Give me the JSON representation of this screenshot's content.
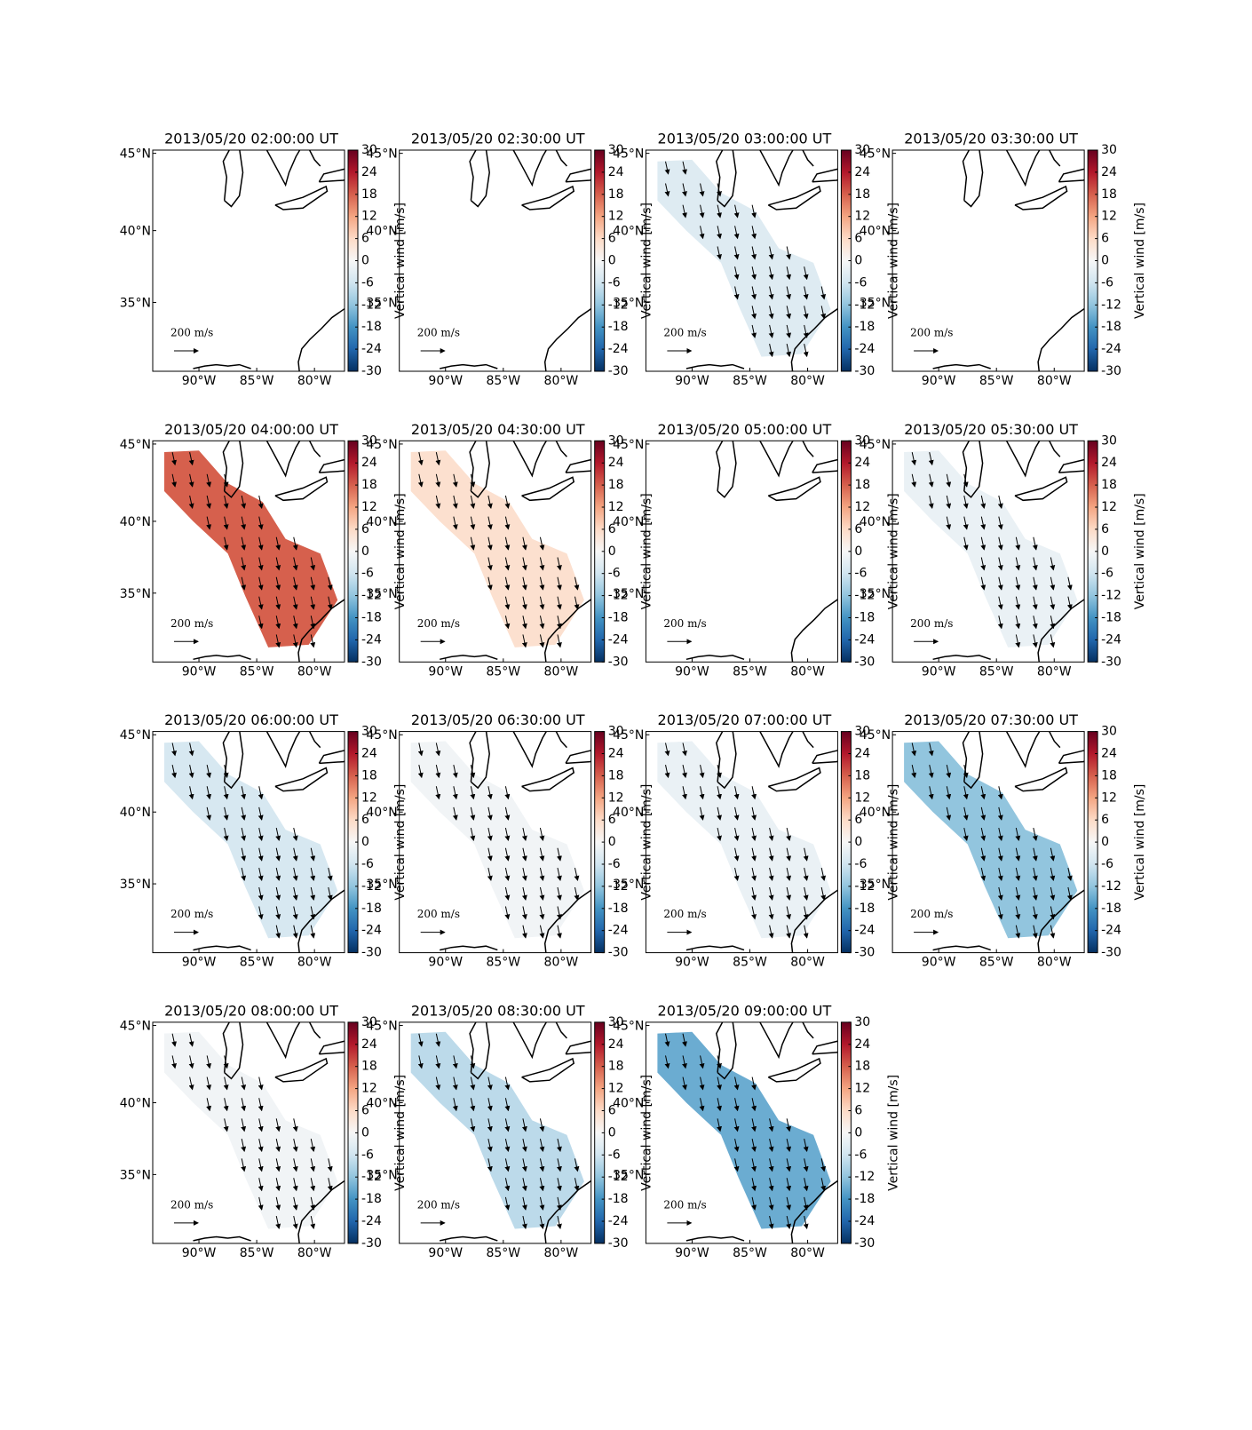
{
  "shared": {
    "xlim": [
      -94,
      -77.4
    ],
    "ylim": [
      29.9,
      45.2
    ],
    "xticks": [
      {
        "value": -90,
        "label": "90°W"
      },
      {
        "value": -85,
        "label": "85°W"
      },
      {
        "value": -80,
        "label": "80°W"
      }
    ],
    "yticks": [
      {
        "value": 45,
        "label": "45°N"
      },
      {
        "value": 40,
        "label": "40°N"
      },
      {
        "value": 35,
        "label": "35°N"
      }
    ],
    "cbar_lim": [
      -30,
      30
    ],
    "cbar_ticks": [
      30,
      24,
      18,
      12,
      6,
      0,
      -6,
      -12,
      -18,
      -24,
      -30
    ],
    "cbar_label": "Vertical wind [m/s]",
    "scale_label": "200 m/s"
  },
  "chart_data": [
    {
      "type": "map",
      "title": "2013/05/20 02:00:00 UT",
      "value": null
    },
    {
      "type": "map",
      "title": "2013/05/20 02:30:00 UT",
      "value": null
    },
    {
      "type": "map",
      "title": "2013/05/20 03:00:00 UT",
      "value": -4
    },
    {
      "type": "map",
      "title": "2013/05/20 03:30:00 UT",
      "value": null
    },
    {
      "type": "map",
      "title": "2013/05/20 04:00:00 UT",
      "value": 18
    },
    {
      "type": "map",
      "title": "2013/05/20 04:30:00 UT",
      "value": 5
    },
    {
      "type": "map",
      "title": "2013/05/20 05:00:00 UT",
      "value": null
    },
    {
      "type": "map",
      "title": "2013/05/20 05:30:00 UT",
      "value": -2
    },
    {
      "type": "map",
      "title": "2013/05/20 06:00:00 UT",
      "value": -5
    },
    {
      "type": "map",
      "title": "2013/05/20 06:30:00 UT",
      "value": -1
    },
    {
      "type": "map",
      "title": "2013/05/20 07:00:00 UT",
      "value": -2
    },
    {
      "type": "map",
      "title": "2013/05/20 07:30:00 UT",
      "value": -12
    },
    {
      "type": "map",
      "title": "2013/05/20 08:00:00 UT",
      "value": -1
    },
    {
      "type": "map",
      "title": "2013/05/20 08:30:00 UT",
      "value": -8
    },
    {
      "type": "map",
      "title": "2013/05/20 09:00:00 UT",
      "value": -15
    }
  ]
}
